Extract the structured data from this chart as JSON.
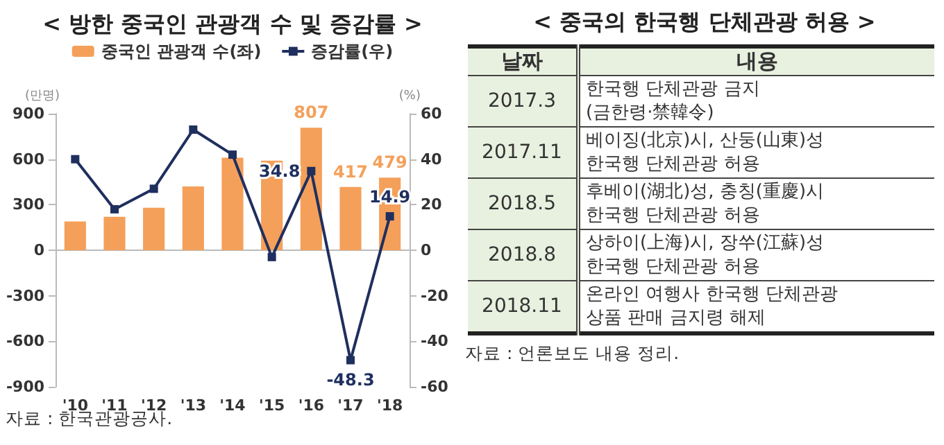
{
  "chart_data": [
    {
      "type": "bar",
      "title": "< 방한 중국인 관광객 수 및 증감률 >",
      "ylabel": "(만명)",
      "y2label": "(%)",
      "categories": [
        "'10",
        "'11",
        "'12",
        "'13",
        "'14",
        "'15",
        "'16",
        "'17",
        "'18"
      ],
      "series": [
        {
          "name": "중국인 관광객 수(좌)",
          "type": "bar",
          "color": "#f4a05a",
          "values": [
            190,
            220,
            280,
            420,
            610,
            590,
            807,
            417,
            479
          ],
          "value_labels": [
            null,
            null,
            null,
            null,
            null,
            null,
            "807",
            "417",
            "479"
          ]
        },
        {
          "name": "증감률(우)",
          "type": "line",
          "axis": "y2",
          "color": "#1f2f5e",
          "values": [
            40,
            18,
            27,
            53,
            42,
            -3,
            34.8,
            -48.3,
            14.9
          ],
          "value_labels": [
            null,
            null,
            null,
            null,
            null,
            null,
            "34.8",
            "-48.3",
            "14.9"
          ]
        }
      ],
      "ylim": [
        -900,
        900
      ],
      "yticks": [
        -900,
        -600,
        -300,
        0,
        300,
        600,
        900
      ],
      "y2lim": [
        -60,
        60
      ],
      "y2ticks": [
        -60,
        -40,
        -20,
        0,
        20,
        40,
        60
      ],
      "marker": "square",
      "legend": "top",
      "annotations": [
        "자료 : 한국관광공사."
      ]
    },
    {
      "type": "other",
      "title": "< 중국의 한국행 단체관광 허용 >",
      "annotations": [
        "날짜",
        "내용",
        "2017.3",
        "한국행 단체관광 금지\n(금한령·禁韓令)",
        "2017.11",
        "베이징(北京)시, 산둥(山東)성\n한국행 단체관광 허용",
        "2018.5",
        "후베이(湖北)성, 충칭(重慶)시\n한국행 단체관광 허용",
        "2018.8",
        "상하이(上海)시, 장쑤(江蘇)성\n한국행 단체관광 허용",
        "2018.11",
        "온라인 여행사 한국행 단체관광\n상품 판매 금지령 해제",
        "자료 : 언론보도 내용 정리."
      ]
    }
  ]
}
